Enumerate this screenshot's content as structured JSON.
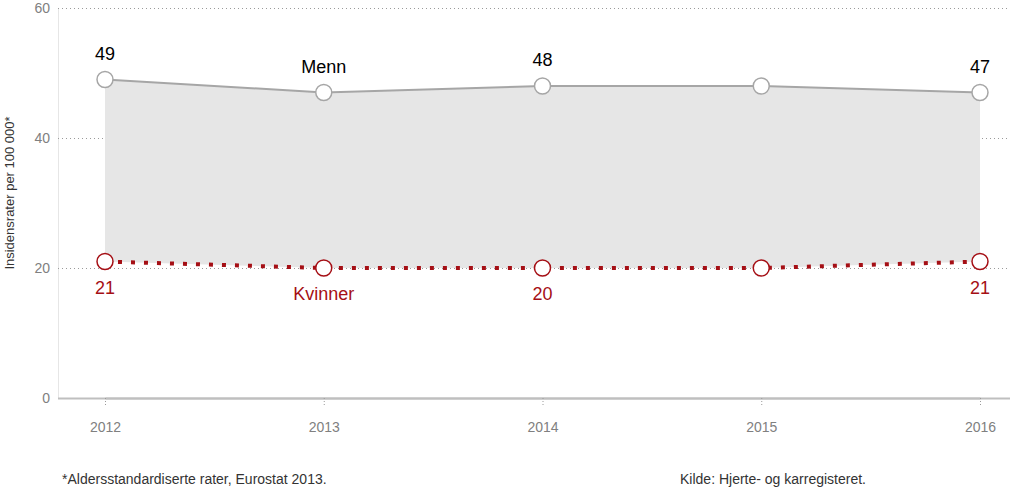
{
  "chart_data": {
    "type": "line",
    "categories": [
      "2012",
      "2013",
      "2014",
      "2015",
      "2016"
    ],
    "series": [
      {
        "name": "Menn",
        "color": "#a6a6a6",
        "line_style": "solid",
        "marker": "circle",
        "values": [
          49,
          47,
          48,
          48,
          47
        ],
        "value_labels": [
          "49",
          null,
          "48",
          null,
          "47"
        ]
      },
      {
        "name": "Kvinner",
        "color": "#a50f15",
        "line_style": "dotted",
        "marker": "circle",
        "values": [
          21,
          20,
          20,
          20,
          21
        ],
        "value_labels": [
          "21",
          null,
          "20",
          null,
          "21"
        ]
      }
    ],
    "ylabel": "Insidensrater per 100 000*",
    "ylim": [
      0,
      60
    ],
    "yticks": [
      0,
      20,
      40,
      60
    ],
    "grid": true,
    "data_labels": true,
    "annotations": [
      "*Aldersstandardiserte rater, Eurostat 2013.",
      "Kilde: Hjerte- og karregisteret."
    ]
  }
}
